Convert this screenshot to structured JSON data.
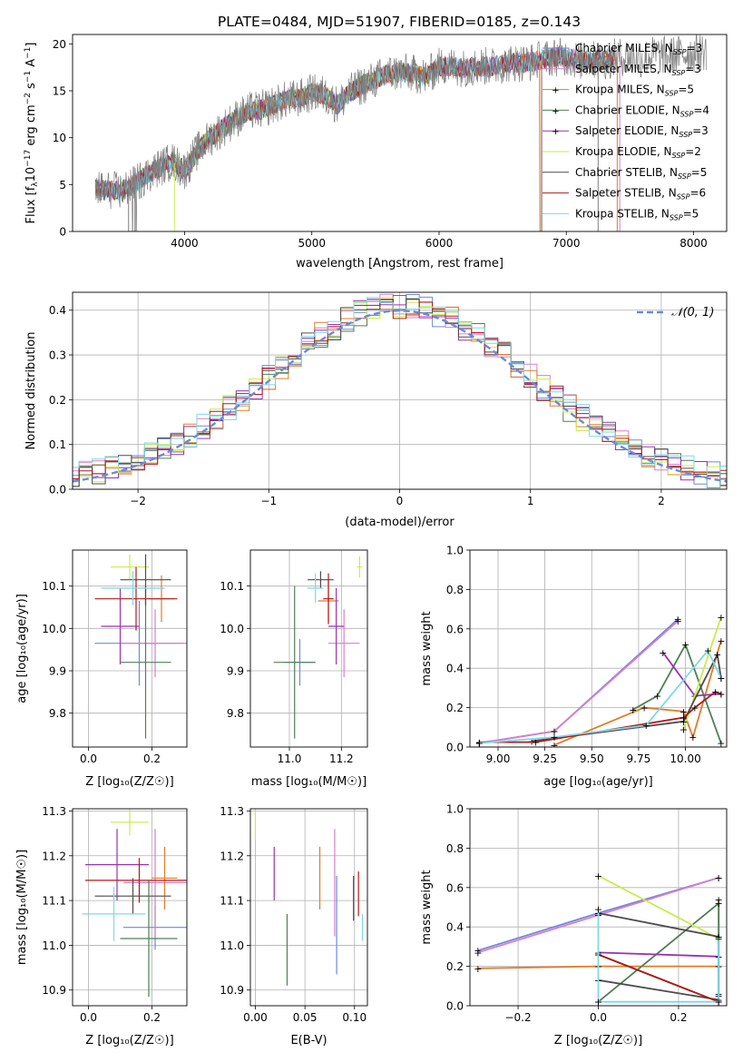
{
  "figure": {
    "title": "PLATE=0484, MJD=51907, FIBERID=0185, z=0.143"
  },
  "legend": {
    "entries": [
      {
        "label": "Chabrier MILES, N",
        "sub": "SSP",
        "suffix": "=3",
        "color": "#6a8ad8"
      },
      {
        "label": "Salpeter MILES, N",
        "sub": "SSP",
        "suffix": "=3",
        "color": "#d87fcb"
      },
      {
        "label": "Kroupa MILES, N",
        "sub": "SSP",
        "suffix": "=5",
        "color": "#e07b2a"
      },
      {
        "label": "Chabrier ELODIE, N",
        "sub": "SSP",
        "suffix": "=4",
        "color": "#4f7f56"
      },
      {
        "label": "Salpeter ELODIE, N",
        "sub": "SSP",
        "suffix": "=3",
        "color": "#9a32b0"
      },
      {
        "label": "Kroupa ELODIE, N",
        "sub": "SSP",
        "suffix": "=2",
        "color": "#c9ec4a"
      },
      {
        "label": "Chabrier STELIB, N",
        "sub": "SSP",
        "suffix": "=5",
        "color": "#4c4c4c"
      },
      {
        "label": "Salpeter STELIB, N",
        "sub": "SSP",
        "suffix": "=6",
        "color": "#b01a1a"
      },
      {
        "label": "Kroupa STELIB, N",
        "sub": "SSP",
        "suffix": "=5",
        "color": "#7fd8e6"
      }
    ],
    "normal_label": "𝒩(0, 1)"
  },
  "axes_labels": {
    "spectrum_x": "wavelength [Angstrom, rest frame]",
    "spectrum_y": "Flux [f",
    "spectrum_y_sub": "λ",
    "spectrum_y_rest": "10",
    "spectrum_y_sup": "−17",
    "spectrum_y_end": " erg cm",
    "spectrum_y_sup2": "−2",
    "spectrum_y_s": " s",
    "spectrum_y_sup3": "−1",
    "spectrum_y_A": " A",
    "spectrum_y_sup4": "−1",
    "spectrum_y_close": "]",
    "hist_x": "(data-model)/error",
    "hist_y": "Normed distribution",
    "age_y": "age  [log₁₀(age/yr)]",
    "Z_x": "Z [log₁₀(Z/Z☉)]",
    "mass_x": "mass [log₁₀(M/M☉)]",
    "mass_y": "mass [log₁₀(M/M☉)]",
    "weight_y": "mass weight",
    "age_x": "age  [log₁₀(age/yr)]",
    "ebv_x": "E(B-V)"
  },
  "chart_data": [
    {
      "id": "spectrum",
      "type": "line",
      "title": "PLATE=0484, MJD=51907, FIBERID=0185, z=0.143",
      "xlabel": "wavelength [Angstrom, rest frame]",
      "ylabel": "Flux [fλ10^-17 erg cm^-2 s^-1 A^-1]",
      "xlim": [
        3120,
        8260
      ],
      "ylim": [
        0,
        21
      ],
      "xticks": [
        4000,
        5000,
        6000,
        7000,
        8000
      ],
      "yticks": [
        0,
        5,
        10,
        15,
        20
      ],
      "continuum": {
        "x": [
          3300,
          3400,
          3500,
          3600,
          3700,
          3800,
          3900,
          4000,
          4100,
          4200,
          4300,
          4400,
          4500,
          4600,
          4700,
          4800,
          4900,
          5000,
          5100,
          5200,
          5300,
          5400,
          5500,
          5600,
          5700,
          5800,
          5900,
          6000,
          6100,
          6200,
          6300,
          6400,
          6500,
          6600,
          6700,
          6800,
          6900,
          7000,
          7100,
          7200,
          7300,
          7400,
          7500,
          7600,
          7700,
          7800,
          7900,
          8000,
          8100
        ],
        "y": [
          4.5,
          4.4,
          4.3,
          5.0,
          6.0,
          6.8,
          7.5,
          6.5,
          8.5,
          10.0,
          11.0,
          12.0,
          12.8,
          13.0,
          13.5,
          14.0,
          14.2,
          14.8,
          14.6,
          13.5,
          14.8,
          15.6,
          16.2,
          16.8,
          17.0,
          16.8,
          16.5,
          17.6,
          17.6,
          17.4,
          17.6,
          17.6,
          17.8,
          18.0,
          18.0,
          18.3,
          18.6,
          18.6,
          18.2,
          18.3,
          18.2,
          18.6,
          18.6,
          18.4,
          18.9,
          18.7,
          18.9,
          19.0,
          19.2
        ]
      }
    },
    {
      "id": "residual_hist",
      "type": "histogram",
      "xlabel": "(data-model)/error",
      "ylabel": "Normed distribution",
      "xlim": [
        -2.5,
        2.5
      ],
      "ylim": [
        0,
        0.44
      ],
      "xticks": [
        -2,
        -1,
        0,
        1,
        2
      ],
      "yticks": [
        0.0,
        0.1,
        0.2,
        0.3,
        0.4
      ],
      "bin_width": 0.1,
      "reference": "N(0,1)"
    },
    {
      "id": "age_vs_Z",
      "type": "scatter",
      "xlabel": "Z [log10(Z/Zsun)]",
      "ylabel": "age [log10(age/yr)]",
      "xlim": [
        -0.05,
        0.31
      ],
      "ylim": [
        9.72,
        10.185
      ],
      "xticks": [
        0.0,
        0.2
      ],
      "yticks": [
        9.8,
        9.9,
        10.0,
        10.1
      ],
      "points": [
        {
          "x": 0.16,
          "y": 9.965,
          "xerr": 0.14,
          "yerr": 0.1,
          "color": "#6a8ad8"
        },
        {
          "x": 0.21,
          "y": 9.965,
          "xerr": 0.1,
          "yerr": 0.08,
          "color": "#d87fcb"
        },
        {
          "x": 0.23,
          "y": 10.07,
          "xerr": 0.04,
          "yerr": 0.055,
          "color": "#e07b2a"
        },
        {
          "x": 0.18,
          "y": 9.92,
          "xerr": 0.08,
          "yerr": 0.18,
          "color": "#4f7f56"
        },
        {
          "x": 0.1,
          "y": 10.005,
          "xerr": 0.06,
          "yerr": 0.09,
          "color": "#9a32b0"
        },
        {
          "x": 0.13,
          "y": 10.145,
          "xerr": 0.06,
          "yerr": 0.03,
          "color": "#c9ec4a"
        },
        {
          "x": 0.18,
          "y": 10.115,
          "xerr": 0.08,
          "yerr": 0.06,
          "color": "#4c4c4c"
        },
        {
          "x": 0.15,
          "y": 10.07,
          "xerr": 0.13,
          "yerr": 0.075,
          "color": "#b01a1a"
        },
        {
          "x": 0.14,
          "y": 10.095,
          "xerr": 0.1,
          "yerr": 0.04,
          "color": "#7fd8e6"
        }
      ]
    },
    {
      "id": "age_vs_mass",
      "type": "scatter",
      "xlabel": "mass [log10(M/Msun)]",
      "ylabel": "",
      "xlim": [
        10.85,
        11.3
      ],
      "ylim": [
        9.72,
        10.185
      ],
      "xticks": [
        11.0,
        11.2
      ],
      "yticks": [
        9.8,
        9.9,
        10.0,
        10.1
      ],
      "points": [
        {
          "x": 11.04,
          "y": 9.92,
          "xerr": 0.06,
          "yerr": 0.055,
          "color": "#6a8ad8"
        },
        {
          "x": 11.21,
          "y": 9.965,
          "xerr": 0.06,
          "yerr": 0.08,
          "color": "#d87fcb"
        },
        {
          "x": 11.15,
          "y": 10.065,
          "xerr": 0.04,
          "yerr": 0.05,
          "color": "#e07b2a"
        },
        {
          "x": 11.02,
          "y": 9.92,
          "xerr": 0.08,
          "yerr": 0.18,
          "color": "#4f7f56"
        },
        {
          "x": 11.18,
          "y": 10.005,
          "xerr": 0.03,
          "yerr": 0.09,
          "color": "#9a32b0"
        },
        {
          "x": 11.27,
          "y": 10.145,
          "xerr": 0.01,
          "yerr": 0.025,
          "color": "#c9ec4a"
        },
        {
          "x": 11.12,
          "y": 10.115,
          "xerr": 0.05,
          "yerr": 0.02,
          "color": "#4c4c4c"
        },
        {
          "x": 11.15,
          "y": 10.07,
          "xerr": 0.02,
          "yerr": 0.06,
          "color": "#b01a1a"
        },
        {
          "x": 11.1,
          "y": 10.095,
          "xerr": 0.03,
          "yerr": 0.035,
          "color": "#7fd8e6"
        }
      ]
    },
    {
      "id": "weight_vs_age",
      "type": "line",
      "xlabel": "age [log10(age/yr)]",
      "ylabel": "mass weight",
      "xlim": [
        8.85,
        10.22
      ],
      "ylim": [
        0,
        1
      ],
      "xticks": [
        9.0,
        9.25,
        9.5,
        9.75,
        10.0
      ],
      "xticklabels": [
        "9.00",
        "9.25",
        "9.50",
        "9.75",
        "10.00"
      ],
      "yticks": [
        0.0,
        0.2,
        0.4,
        0.6,
        0.8,
        1.0
      ],
      "series": [
        {
          "color": "#6a8ad8",
          "x": [
            8.9,
            9.3,
            9.96
          ],
          "y": [
            0.02,
            0.08,
            0.65
          ]
        },
        {
          "color": "#d87fcb",
          "x": [
            8.9,
            9.3,
            9.96
          ],
          "y": [
            0.02,
            0.08,
            0.64
          ]
        },
        {
          "color": "#e07b2a",
          "x": [
            9.3,
            9.78,
            9.99,
            10.04,
            10.19
          ],
          "y": [
            0.01,
            0.2,
            0.18,
            0.05,
            0.54
          ]
        },
        {
          "color": "#4f7f56",
          "x": [
            9.72,
            9.85,
            10.0,
            10.19
          ],
          "y": [
            0.19,
            0.26,
            0.52,
            0.02
          ]
        },
        {
          "color": "#9a32b0",
          "x": [
            9.88,
            10.05,
            10.19
          ],
          "y": [
            0.48,
            0.26,
            0.27
          ]
        },
        {
          "color": "#c9ec4a",
          "x": [
            9.99,
            10.19
          ],
          "y": [
            0.09,
            0.66
          ]
        },
        {
          "color": "#4c4c4c",
          "x": [
            9.18,
            9.99,
            10.17,
            10.19
          ],
          "y": [
            0.03,
            0.13,
            0.47,
            0.35
          ]
        },
        {
          "color": "#b01a1a",
          "x": [
            8.9,
            9.2,
            9.99,
            10.05,
            10.16,
            10.19
          ],
          "y": [
            0.025,
            0.025,
            0.15,
            0.2,
            0.28,
            0.27
          ]
        },
        {
          "color": "#7fd8e6",
          "x": [
            8.9,
            9.3,
            9.79,
            10.12,
            10.19
          ],
          "y": [
            0.02,
            0.05,
            0.11,
            0.49,
            0.35
          ]
        }
      ]
    },
    {
      "id": "mass_vs_Z",
      "type": "scatter",
      "xlabel": "Z [log10(Z/Zsun)]",
      "ylabel": "mass [log10(M/Msun)]",
      "xlim": [
        -0.05,
        0.31
      ],
      "ylim": [
        10.865,
        11.305
      ],
      "xticks": [
        0.0,
        0.2
      ],
      "yticks": [
        10.9,
        11.0,
        11.1,
        11.2,
        11.3
      ],
      "points": [
        {
          "x": 0.21,
          "y": 11.04,
          "xerr": 0.1,
          "yerr": 0.05,
          "color": "#6a8ad8"
        },
        {
          "x": 0.21,
          "y": 11.14,
          "xerr": 0.1,
          "yerr": 0.12,
          "color": "#d87fcb"
        },
        {
          "x": 0.24,
          "y": 11.15,
          "xerr": 0.04,
          "yerr": 0.07,
          "color": "#e07b2a"
        },
        {
          "x": 0.19,
          "y": 11.015,
          "xerr": 0.09,
          "yerr": 0.13,
          "color": "#4f7f56"
        },
        {
          "x": 0.09,
          "y": 11.18,
          "xerr": 0.1,
          "yerr": 0.08,
          "color": "#9a32b0"
        },
        {
          "x": 0.13,
          "y": 11.275,
          "xerr": 0.06,
          "yerr": 0.03,
          "color": "#c9ec4a"
        },
        {
          "x": 0.14,
          "y": 11.11,
          "xerr": 0.12,
          "yerr": 0.04,
          "color": "#4c4c4c"
        },
        {
          "x": 0.16,
          "y": 11.145,
          "xerr": 0.17,
          "yerr": 0.05,
          "color": "#b01a1a"
        },
        {
          "x": 0.08,
          "y": 11.07,
          "xerr": 0.1,
          "yerr": 0.06,
          "color": "#7fd8e6"
        }
      ]
    },
    {
      "id": "mass_vs_ebv",
      "type": "scatter",
      "xlabel": "E(B-V)",
      "ylabel": "",
      "xlim": [
        -0.005,
        0.113
      ],
      "ylim": [
        10.865,
        11.305
      ],
      "xticks": [
        0.0,
        0.05,
        0.1
      ],
      "yticks": [
        10.9,
        11.0,
        11.1,
        11.2,
        11.3
      ],
      "points": [
        {
          "x": 0.082,
          "y": 11.045,
          "yerr": 0.11,
          "color": "#6a8ad8"
        },
        {
          "x": 0.08,
          "y": 11.14,
          "yerr": 0.12,
          "color": "#d87fcb"
        },
        {
          "x": 0.065,
          "y": 11.15,
          "yerr": 0.07,
          "color": "#e07b2a"
        },
        {
          "x": 0.032,
          "y": 10.99,
          "yerr": 0.08,
          "color": "#4f7f56"
        },
        {
          "x": 0.019,
          "y": 11.16,
          "yerr": 0.06,
          "color": "#9a32b0"
        },
        {
          "x": 0.0,
          "y": 11.27,
          "yerr": 0.035,
          "color": "#c9ec4a"
        },
        {
          "x": 0.099,
          "y": 11.105,
          "yerr": 0.05,
          "color": "#4c4c4c"
        },
        {
          "x": 0.104,
          "y": 11.115,
          "yerr": 0.05,
          "color": "#b01a1a"
        },
        {
          "x": 0.108,
          "y": 11.04,
          "yerr": 0.03,
          "color": "#7fd8e6"
        }
      ]
    },
    {
      "id": "weight_vs_Z",
      "type": "line",
      "xlabel": "Z [log10(Z/Zsun)]",
      "ylabel": "mass weight",
      "xlim": [
        -0.32,
        0.32
      ],
      "ylim": [
        0,
        1
      ],
      "xticks": [
        -0.2,
        0.0,
        0.2
      ],
      "xticklabels": [
        "−0.2",
        "0.0",
        "0.2"
      ],
      "yticks": [
        0.0,
        0.2,
        0.4,
        0.6,
        0.8,
        1.0
      ],
      "series": [
        {
          "color": "#6a8ad8",
          "x": [
            -0.3,
            0.0,
            0.3
          ],
          "y": [
            0.28,
            0.47,
            0.65
          ]
        },
        {
          "color": "#d87fcb",
          "x": [
            -0.3,
            0.0,
            0.3
          ],
          "y": [
            0.27,
            0.46,
            0.65
          ]
        },
        {
          "color": "#e07b2a",
          "x": [
            -0.3,
            0.0,
            0.3,
            0.3,
            0.3
          ],
          "y": [
            0.19,
            0.2,
            0.2,
            0.54,
            0.05
          ]
        },
        {
          "color": "#4f7f56",
          "x": [
            0.0,
            0.3,
            0.3,
            0.0
          ],
          "y": [
            0.02,
            0.52,
            0.02,
            0.26
          ]
        },
        {
          "color": "#9a32b0",
          "x": [
            0.0,
            0.3
          ],
          "y": [
            0.27,
            0.25
          ]
        },
        {
          "color": "#c9ec4a",
          "x": [
            0.0,
            0.3
          ],
          "y": [
            0.66,
            0.34
          ]
        },
        {
          "color": "#4c4c4c",
          "x": [
            0.0,
            0.3,
            0.3,
            0.0
          ],
          "y": [
            0.13,
            0.03,
            0.35,
            0.47
          ]
        },
        {
          "color": "#b01a1a",
          "x": [
            0.0,
            0.3,
            0.3
          ],
          "y": [
            0.26,
            0.02,
            0.06
          ]
        },
        {
          "color": "#7fd8e6",
          "x": [
            0.0,
            0.0,
            0.3,
            0.3
          ],
          "y": [
            0.49,
            0.02,
            0.02,
            0.35
          ]
        }
      ]
    }
  ]
}
